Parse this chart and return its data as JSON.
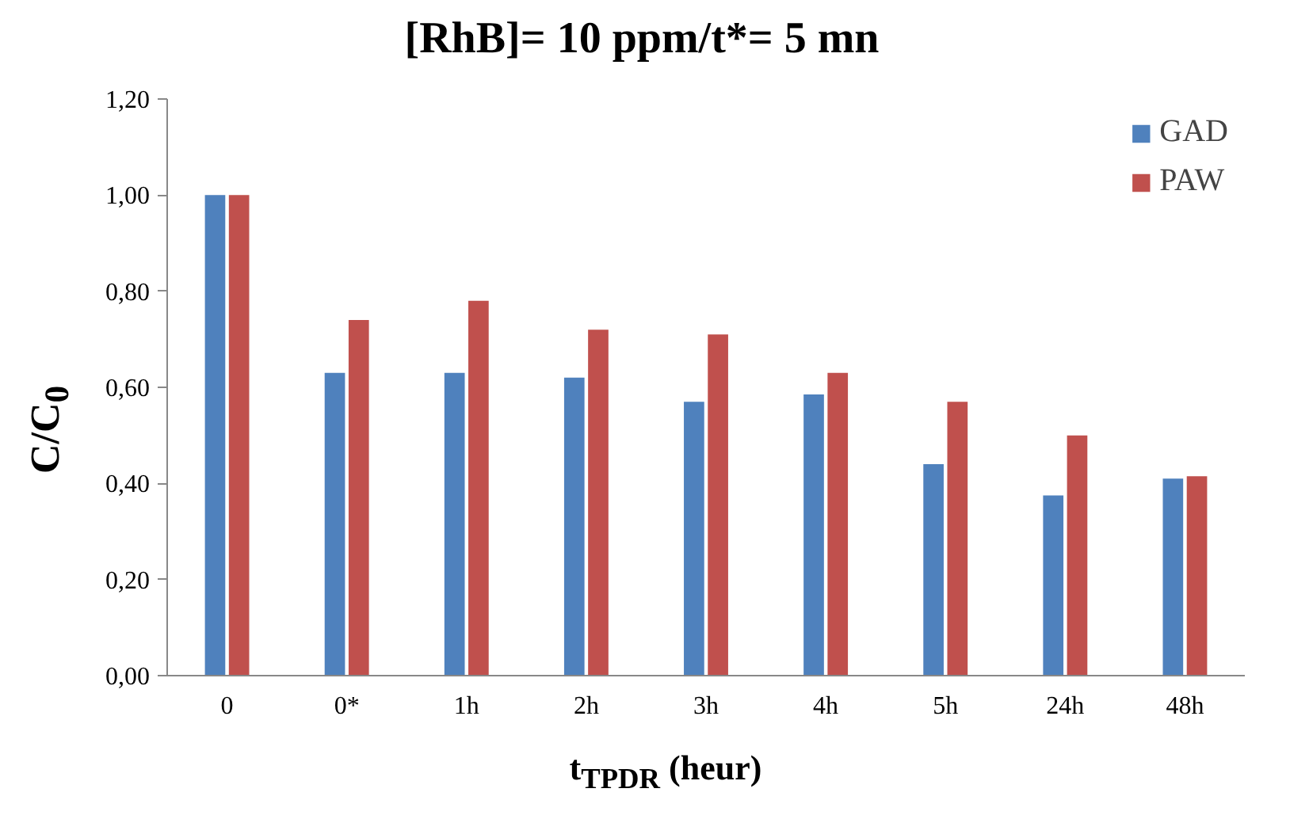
{
  "chart_data": {
    "type": "bar",
    "title": "[RhB]= 10 ppm/t*= 5 mn",
    "xlabel": "t$_{TPDR}$ (heur)",
    "ylabel": "C/C$_{0}$",
    "categories": [
      "0",
      "0*",
      "1h",
      "2h",
      "3h",
      "4h",
      "5h",
      "24h",
      "48h"
    ],
    "series": [
      {
        "name": "GAD",
        "color": "#4f81bd",
        "values": [
          1.0,
          0.63,
          0.63,
          0.62,
          0.57,
          0.585,
          0.44,
          0.375,
          0.41
        ]
      },
      {
        "name": "PAW",
        "color": "#c0504d",
        "values": [
          1.0,
          0.74,
          0.78,
          0.72,
          0.71,
          0.63,
          0.57,
          0.5,
          0.415
        ]
      }
    ],
    "ylim": [
      0,
      1.2
    ],
    "yticks": [
      {
        "value": 0,
        "label": "0,00"
      },
      {
        "value": 0.2,
        "label": "0,20"
      },
      {
        "value": 0.4,
        "label": "0,40"
      },
      {
        "value": 0.6,
        "label": "0,60"
      },
      {
        "value": 0.8,
        "label": "0,80"
      },
      {
        "value": 1.0,
        "label": "1,00"
      },
      {
        "value": 1.2,
        "label": "1,20"
      }
    ],
    "grid": false,
    "legend": "top right"
  }
}
